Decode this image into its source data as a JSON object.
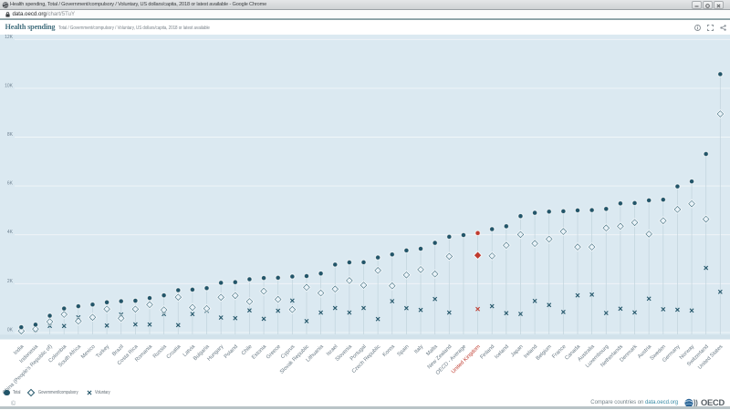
{
  "window": {
    "title": "Health spending, Total / Government/compulsory / Voluntary, US dollars/capita, 2018 or latest available - Google Chrome",
    "url_domain": "data.oecd.org",
    "url_path": "/chart/5TuY",
    "controls": [
      "minimize-icon",
      "maximize-icon",
      "close-icon"
    ]
  },
  "header": {
    "title": "Health spending",
    "subtitle": "Total / Government/compulsory / Voluntary, US dollars/capita, 2018 or latest available"
  },
  "chart_data": {
    "type": "scatter",
    "title": "Health spending",
    "ylabel": "US dollars/capita",
    "ylim": [
      0,
      12000
    ],
    "ytick_values": [
      0,
      2000,
      4000,
      6000,
      8000,
      10000,
      12000
    ],
    "ytick_labels": [
      "0K",
      "2K",
      "4K",
      "6K",
      "8K",
      "10K",
      "12K"
    ],
    "grid": true,
    "legend_position": "bottom-left",
    "highlight_country": "United Kingdom",
    "categories": [
      "India",
      "Indonesia",
      "China (People's Republic of)",
      "Colombia",
      "South Africa",
      "Mexico",
      "Turkey",
      "Brazil",
      "Costa Rica",
      "Romania",
      "Russia",
      "Croatia",
      "Latvia",
      "Bulgaria",
      "Hungary",
      "Poland",
      "Chile",
      "Estonia",
      "Greece",
      "Cyprus",
      "Slovak Republic",
      "Lithuania",
      "Israel",
      "Slovenia",
      "Portugal",
      "Czech Republic",
      "Korea",
      "Spain",
      "Italy",
      "Malta",
      "New Zealand",
      "OECD - Average",
      "United Kingdom",
      "Finland",
      "Iceland",
      "Japan",
      "Ireland",
      "Belgium",
      "France",
      "Canada",
      "Australia",
      "Luxembourg",
      "Netherlands",
      "Denmark",
      "Austria",
      "Sweden",
      "Germany",
      "Norway",
      "Switzerland",
      "United States"
    ],
    "series": [
      {
        "name": "Total",
        "marker": "circle",
        "values": [
          215,
          320,
          685,
          980,
          1075,
          1145,
          1235,
          1280,
          1300,
          1410,
          1520,
          1730,
          1755,
          1815,
          2035,
          2060,
          2180,
          2230,
          2240,
          2290,
          2310,
          2415,
          2780,
          2870,
          2875,
          3070,
          3195,
          3360,
          3430,
          3670,
          3920,
          3990,
          4070,
          4230,
          4350,
          4765,
          4900,
          4950,
          4965,
          5000,
          5010,
          5060,
          5285,
          5300,
          5410,
          5440,
          5980,
          6185,
          7310,
          10580
        ]
      },
      {
        "name": "Government/compulsory",
        "marker": "diamond",
        "values": [
          60,
          140,
          440,
          740,
          465,
          620,
          960,
          580,
          955,
          1140,
          925,
          1445,
          1025,
          980,
          1440,
          1510,
          1265,
          1690,
          1355,
          940,
          1850,
          1615,
          1780,
          2125,
          1935,
          2540,
          1910,
          2355,
          2575,
          2395,
          3115,
          null,
          3160,
          3135,
          3570,
          4010,
          3645,
          3825,
          4135,
          3500,
          3500,
          4280,
          4350,
          4500,
          4030,
          4575,
          5040,
          5270,
          4640,
          8950
        ]
      },
      {
        "name": "Voluntary",
        "marker": "x",
        "values": [
          160,
          100,
          270,
          265,
          620,
          610,
          285,
          735,
          330,
          325,
          755,
          300,
          755,
          885,
          610,
          585,
          905,
          560,
          890,
          1305,
          465,
          815,
          1000,
          815,
          1000,
          550,
          1280,
          995,
          920,
          1370,
          815,
          null,
          960,
          1075,
          790,
          760,
          1290,
          1125,
          840,
          1520,
          1550,
          795,
          975,
          820,
          1385,
          950,
          930,
          900,
          2645,
          1665
        ]
      }
    ]
  },
  "legend": {
    "items": [
      {
        "label": "Total",
        "marker": "circle"
      },
      {
        "label": "Government/compulsory",
        "marker": "diamond"
      },
      {
        "label": "Voluntary",
        "marker": "x"
      }
    ]
  },
  "footer": {
    "copyright": "©",
    "compare_text": "Compare countries on",
    "compare_link": "data.oecd.org",
    "logo_text": "OECD"
  },
  "colors": {
    "marker": "#225569",
    "highlight": "#bf3b2f",
    "chart_bg": "#dbe9f1",
    "grid": "#ffffff",
    "axis_label": "#6f8292",
    "country_label": "#6a7a85",
    "stem": "#c3d5de",
    "page_title": "#2f6478",
    "link": "#368aa5"
  }
}
